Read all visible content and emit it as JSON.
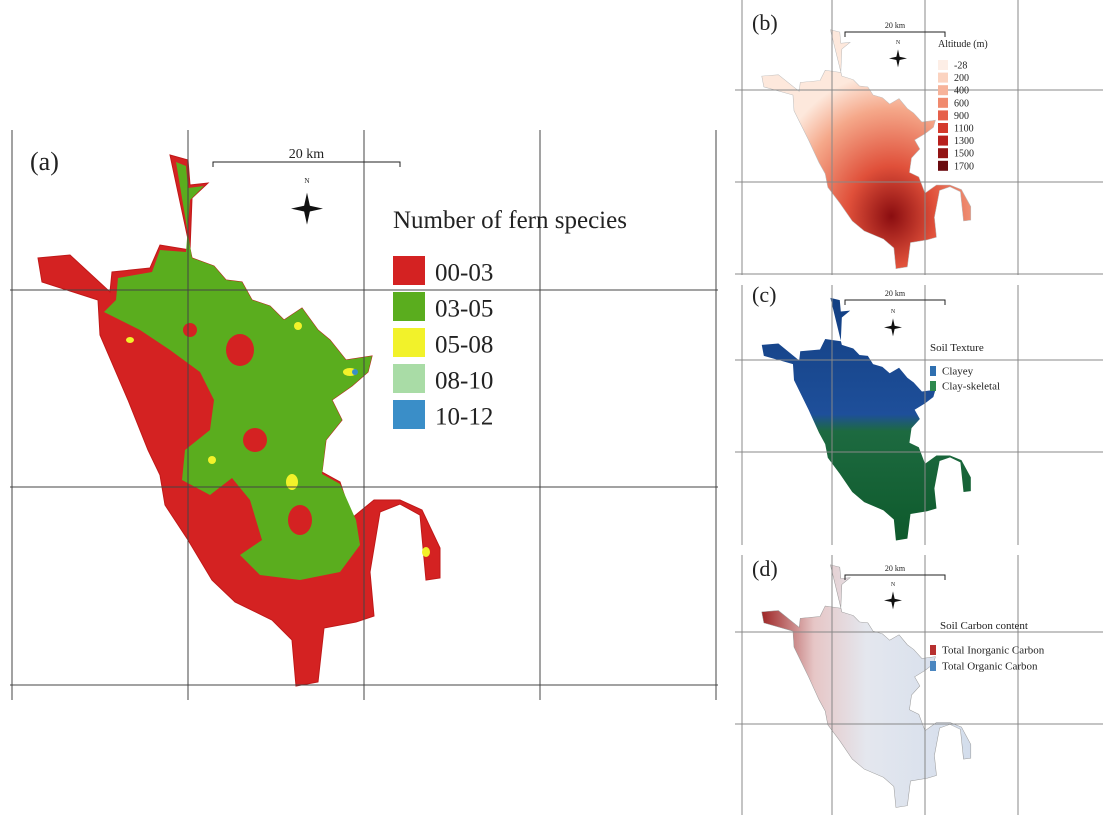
{
  "panels": [
    {
      "label": "(a)",
      "scale": "20 km",
      "north": "N",
      "legend_title": "Number of fern species",
      "legend_items": [
        {
          "label": "00-03",
          "color": "#d42222"
        },
        {
          "label": "03-05",
          "color": "#5aad1e"
        },
        {
          "label": "05-08",
          "color": "#f2f22a"
        },
        {
          "label": "08-10",
          "color": "#a9dca6"
        },
        {
          "label": "10-12",
          "color": "#3a8ec8"
        }
      ]
    },
    {
      "label": "(b)",
      "scale": "20 km",
      "north": "N",
      "legend_title": "Altitude (m)",
      "legend_items": [
        {
          "label": "-28",
          "color": "#fdeee6"
        },
        {
          "label": "200",
          "color": "#fbd3c0"
        },
        {
          "label": "400",
          "color": "#f7b39a"
        },
        {
          "label": "600",
          "color": "#f08a6e"
        },
        {
          "label": "900",
          "color": "#e6604a"
        },
        {
          "label": "1100",
          "color": "#d43a2c"
        },
        {
          "label": "1300",
          "color": "#b8201d"
        },
        {
          "label": "1500",
          "color": "#931414"
        },
        {
          "label": "1700",
          "color": "#6a0a0e"
        }
      ]
    },
    {
      "label": "(c)",
      "scale": "20 km",
      "north": "N",
      "legend_title": "Soil Texture",
      "legend_items": [
        {
          "label": "Clayey",
          "color": "#2f6fb0"
        },
        {
          "label": "Clay-skeletal",
          "color": "#2e8a4e"
        }
      ]
    },
    {
      "label": "(d)",
      "scale": "20 km",
      "north": "N",
      "legend_title": "Soil Carbon content",
      "legend_items": [
        {
          "label": "Total Inorganic Carbon",
          "color": "#b73030"
        },
        {
          "label": "Total Organic Carbon",
          "color": "#4a86c0"
        }
      ]
    }
  ]
}
